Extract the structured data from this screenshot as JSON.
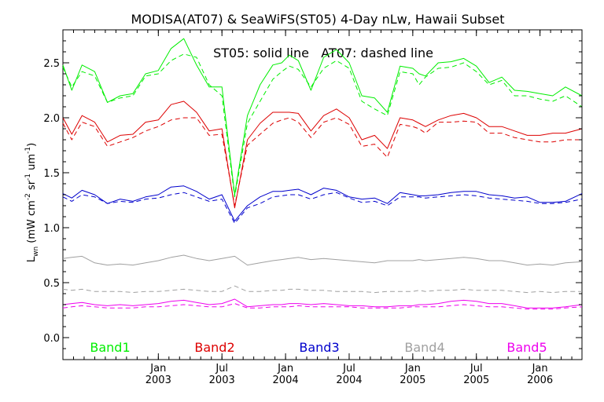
{
  "chart_data": {
    "type": "line",
    "title": "MODISA(AT07) & SeaWiFS(ST05) 4-Day nLw, Hawaii Subset",
    "annotation": "ST05: solid line   AT07: dashed line",
    "ylabel": {
      "main": "L",
      "sub": "wn",
      "units_open": " (mW cm",
      "exp1": "-2",
      "mid1": " sr",
      "exp2": "-1",
      "mid2": " um",
      "exp3": "-1",
      "units_close": ")"
    },
    "ylim": [
      -0.2,
      2.8
    ],
    "yticks": [
      0.0,
      0.5,
      1.0,
      1.5,
      2.0,
      2.5
    ],
    "ytick_labels": [
      "0.0",
      "0.5",
      "1.0",
      "1.5",
      "2.0",
      "2.5"
    ],
    "xlim": [
      2002.25,
      2006.33
    ],
    "xticks": [
      {
        "x": 2003.0,
        "month": "Jan",
        "year": "2003"
      },
      {
        "x": 2003.5,
        "month": "Jul",
        "year": "2003"
      },
      {
        "x": 2004.0,
        "month": "Jan",
        "year": "2004"
      },
      {
        "x": 2004.5,
        "month": "Jul",
        "year": "2004"
      },
      {
        "x": 2005.0,
        "month": "Jan",
        "year": "2005"
      },
      {
        "x": 2005.5,
        "month": "Jul",
        "year": "2005"
      },
      {
        "x": 2006.0,
        "month": "Jan",
        "year": "2006"
      }
    ],
    "grid": false,
    "legend_position": "bottom",
    "line_styles": {
      "ST05": "solid",
      "AT07": "dashed"
    },
    "x": [
      2002.25,
      2002.32,
      2002.4,
      2002.5,
      2002.6,
      2002.7,
      2002.8,
      2002.9,
      2003.0,
      2003.1,
      2003.2,
      2003.3,
      2003.4,
      2003.5,
      2003.6,
      2003.7,
      2003.8,
      2003.9,
      2003.97,
      2004.03,
      2004.1,
      2004.2,
      2004.3,
      2004.4,
      2004.5,
      2004.6,
      2004.7,
      2004.8,
      2004.9,
      2005.0,
      2005.05,
      2005.1,
      2005.2,
      2005.3,
      2005.4,
      2005.5,
      2005.6,
      2005.7,
      2005.8,
      2005.9,
      2006.0,
      2006.1,
      2006.2,
      2006.33
    ],
    "series": [
      {
        "name": "Band1",
        "color": "#00ee00",
        "ST05": [
          2.48,
          2.25,
          2.48,
          2.42,
          2.14,
          2.2,
          2.22,
          2.4,
          2.43,
          2.63,
          2.72,
          2.48,
          2.28,
          2.28,
          1.3,
          2.02,
          2.3,
          2.48,
          2.5,
          2.57,
          2.52,
          2.25,
          2.55,
          2.62,
          2.5,
          2.2,
          2.18,
          2.05,
          2.47,
          2.45,
          2.4,
          2.38,
          2.5,
          2.51,
          2.54,
          2.47,
          2.32,
          2.37,
          2.25,
          2.24,
          2.22,
          2.2,
          2.28,
          2.2
        ],
        "AT07": [
          2.46,
          2.28,
          2.42,
          2.38,
          2.14,
          2.18,
          2.2,
          2.38,
          2.4,
          2.52,
          2.58,
          2.55,
          2.3,
          2.2,
          1.28,
          1.95,
          2.15,
          2.35,
          2.42,
          2.47,
          2.44,
          2.28,
          2.45,
          2.52,
          2.45,
          2.15,
          2.08,
          2.02,
          2.42,
          2.4,
          2.3,
          2.37,
          2.45,
          2.46,
          2.5,
          2.42,
          2.3,
          2.34,
          2.2,
          2.2,
          2.17,
          2.15,
          2.2,
          2.1
        ]
      },
      {
        "name": "Band2",
        "color": "#dd0000",
        "ST05": [
          2.0,
          1.85,
          2.02,
          1.96,
          1.78,
          1.84,
          1.85,
          1.96,
          1.98,
          2.12,
          2.15,
          2.05,
          1.88,
          1.9,
          1.18,
          1.8,
          1.95,
          2.05,
          2.05,
          2.05,
          2.04,
          1.88,
          2.02,
          2.08,
          2.0,
          1.8,
          1.84,
          1.72,
          2.0,
          1.98,
          1.95,
          1.92,
          1.98,
          2.02,
          2.04,
          2.0,
          1.92,
          1.92,
          1.88,
          1.84,
          1.84,
          1.86,
          1.86,
          1.9
        ],
        "AT07": [
          1.95,
          1.8,
          1.96,
          1.92,
          1.74,
          1.78,
          1.82,
          1.88,
          1.92,
          1.98,
          2.0,
          2.0,
          1.84,
          1.85,
          1.2,
          1.75,
          1.85,
          1.95,
          1.98,
          2.0,
          1.96,
          1.82,
          1.96,
          2.0,
          1.94,
          1.74,
          1.76,
          1.64,
          1.94,
          1.92,
          1.9,
          1.86,
          1.96,
          1.96,
          1.97,
          1.96,
          1.86,
          1.86,
          1.82,
          1.8,
          1.78,
          1.78,
          1.8,
          1.8
        ]
      },
      {
        "name": "Band3",
        "color": "#0000cc",
        "ST05": [
          1.31,
          1.27,
          1.34,
          1.3,
          1.22,
          1.26,
          1.24,
          1.28,
          1.3,
          1.37,
          1.38,
          1.33,
          1.26,
          1.3,
          1.06,
          1.2,
          1.28,
          1.33,
          1.33,
          1.34,
          1.35,
          1.3,
          1.36,
          1.34,
          1.28,
          1.26,
          1.27,
          1.22,
          1.32,
          1.3,
          1.29,
          1.29,
          1.3,
          1.32,
          1.33,
          1.33,
          1.3,
          1.29,
          1.27,
          1.28,
          1.23,
          1.23,
          1.24,
          1.31
        ],
        "AT07": [
          1.28,
          1.24,
          1.3,
          1.28,
          1.22,
          1.24,
          1.23,
          1.26,
          1.27,
          1.3,
          1.32,
          1.28,
          1.24,
          1.26,
          1.04,
          1.18,
          1.22,
          1.28,
          1.29,
          1.3,
          1.3,
          1.26,
          1.3,
          1.32,
          1.27,
          1.23,
          1.24,
          1.2,
          1.28,
          1.28,
          1.28,
          1.27,
          1.28,
          1.29,
          1.3,
          1.29,
          1.27,
          1.26,
          1.25,
          1.24,
          1.22,
          1.22,
          1.23,
          1.26
        ]
      },
      {
        "name": "Band4",
        "color": "#a0a0a0",
        "ST05": [
          0.72,
          0.73,
          0.74,
          0.68,
          0.66,
          0.67,
          0.66,
          0.68,
          0.7,
          0.73,
          0.75,
          0.72,
          0.7,
          0.72,
          0.74,
          0.66,
          0.68,
          0.7,
          0.71,
          0.72,
          0.73,
          0.71,
          0.72,
          0.71,
          0.7,
          0.69,
          0.68,
          0.7,
          0.7,
          0.7,
          0.71,
          0.7,
          0.71,
          0.72,
          0.73,
          0.72,
          0.7,
          0.7,
          0.68,
          0.66,
          0.67,
          0.66,
          0.68,
          0.69
        ],
        "AT07": [
          0.44,
          0.43,
          0.44,
          0.42,
          0.42,
          0.42,
          0.41,
          0.42,
          0.42,
          0.43,
          0.44,
          0.43,
          0.42,
          0.42,
          0.47,
          0.42,
          0.42,
          0.43,
          0.43,
          0.44,
          0.44,
          0.43,
          0.43,
          0.42,
          0.42,
          0.42,
          0.41,
          0.42,
          0.42,
          0.42,
          0.43,
          0.42,
          0.43,
          0.43,
          0.44,
          0.43,
          0.43,
          0.43,
          0.42,
          0.41,
          0.42,
          0.41,
          0.42,
          0.42
        ]
      },
      {
        "name": "Band5",
        "color": "#ee00ee",
        "ST05": [
          0.3,
          0.31,
          0.32,
          0.3,
          0.29,
          0.3,
          0.29,
          0.3,
          0.31,
          0.33,
          0.34,
          0.32,
          0.3,
          0.31,
          0.35,
          0.28,
          0.29,
          0.3,
          0.3,
          0.31,
          0.31,
          0.3,
          0.31,
          0.3,
          0.29,
          0.29,
          0.28,
          0.28,
          0.29,
          0.29,
          0.3,
          0.3,
          0.31,
          0.33,
          0.34,
          0.33,
          0.31,
          0.31,
          0.29,
          0.27,
          0.27,
          0.27,
          0.28,
          0.3
        ],
        "AT07": [
          0.27,
          0.28,
          0.29,
          0.28,
          0.27,
          0.27,
          0.27,
          0.28,
          0.28,
          0.29,
          0.3,
          0.29,
          0.28,
          0.28,
          0.31,
          0.27,
          0.27,
          0.28,
          0.28,
          0.28,
          0.29,
          0.28,
          0.28,
          0.28,
          0.28,
          0.27,
          0.27,
          0.27,
          0.27,
          0.28,
          0.28,
          0.28,
          0.28,
          0.29,
          0.3,
          0.29,
          0.28,
          0.28,
          0.27,
          0.26,
          0.26,
          0.26,
          0.27,
          0.28
        ]
      }
    ]
  }
}
